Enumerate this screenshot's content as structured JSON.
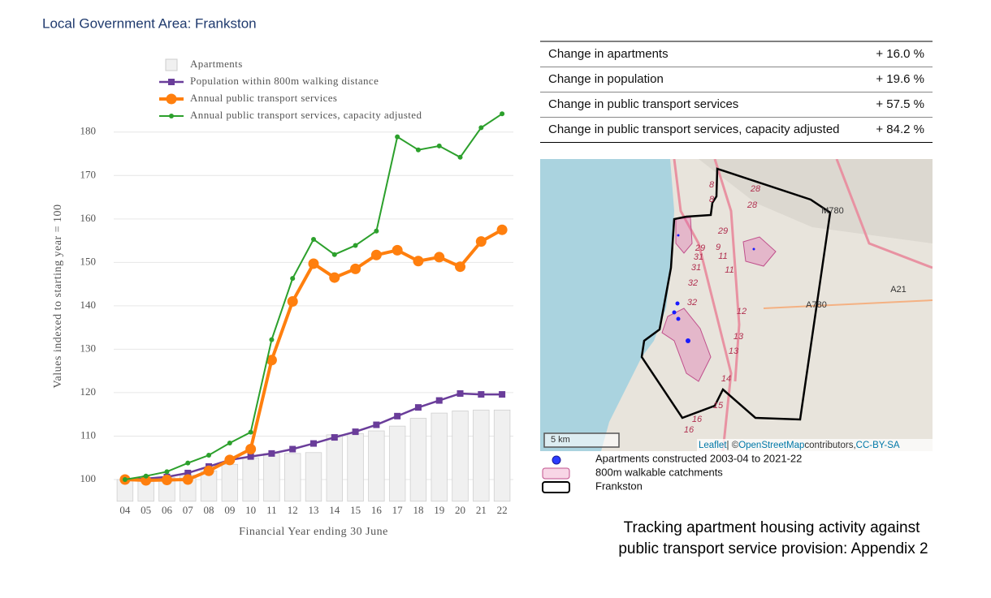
{
  "header": {
    "title": "Local Government Area: Frankston"
  },
  "chart_data": {
    "type": "bar-line",
    "xlabel": "Financial Year ending 30 June",
    "ylabel": "Values indexed to starting year = 100",
    "categories": [
      "04",
      "05",
      "06",
      "07",
      "08",
      "09",
      "10",
      "11",
      "12",
      "13",
      "14",
      "15",
      "16",
      "17",
      "18",
      "19",
      "20",
      "21",
      "22"
    ],
    "series": [
      {
        "name": "Apartments",
        "type": "bar",
        "color": "#f0f0f0",
        "values": [
          100,
          100,
          100.5,
          101,
          102,
          103.5,
          105,
          106,
          106,
          106.2,
          110.3,
          110.6,
          111.2,
          112.3,
          114.1,
          115.3,
          115.8,
          116,
          116
        ]
      },
      {
        "name": "Population within 800m walking distance",
        "type": "line",
        "color": "#6a3d9a",
        "values": [
          100,
          100.2,
          100.6,
          101.5,
          103,
          104.5,
          105.3,
          106,
          107,
          108.3,
          109.7,
          111,
          112.6,
          114.6,
          116.6,
          118.2,
          119.8,
          119.6,
          119.6
        ]
      },
      {
        "name": "Annual public transport services",
        "type": "line",
        "color": "#ff7f0e",
        "values": [
          100,
          99.8,
          99.9,
          100,
          102,
          104.5,
          107,
          127.5,
          141,
          149.7,
          146.5,
          148.5,
          151.7,
          152.8,
          150.3,
          151.2,
          149,
          154.8,
          157.5
        ]
      },
      {
        "name": "Annual public transport services, capacity adjusted",
        "type": "line",
        "color": "#2ca02c",
        "values": [
          100,
          100.8,
          101.8,
          103.8,
          105.6,
          108.4,
          110.9,
          132.2,
          146.3,
          155.3,
          151.8,
          153.9,
          157.2,
          178.9,
          175.9,
          176.8,
          174.2,
          181,
          184.2
        ]
      }
    ],
    "ylim": [
      95,
      185
    ],
    "yticks": [
      100,
      110,
      120,
      130,
      140,
      150,
      160,
      170,
      180
    ],
    "grid": true
  },
  "table": {
    "rows": [
      [
        "Change in apartments",
        "+ 16.0 %"
      ],
      [
        "Change in population",
        "+ 19.6 %"
      ],
      [
        "Change in public transport services",
        "+ 57.5 %"
      ],
      [
        "Change in public transport services, capacity adjusted",
        "+ 84.2 %"
      ]
    ]
  },
  "map": {
    "labels": [
      "28",
      "28",
      "8",
      "8",
      "M780",
      "29",
      "29",
      "31",
      "9",
      "11",
      "31",
      "11",
      "32",
      "32",
      "12",
      "A21",
      "A780",
      "13",
      "13",
      "14",
      "15",
      "16",
      "16"
    ],
    "scale": "5 km",
    "attribution": [
      "Leaflet",
      " | © ",
      "OpenStreetMap",
      " contributors, ",
      "CC-BY-SA"
    ],
    "legend": [
      "Apartments constructed 2003-04 to 2021-22",
      "800m walkable catchments",
      "Frankston"
    ]
  },
  "caption": [
    "Tracking apartment housing activity against",
    "public transport service provision: Appendix 2"
  ]
}
